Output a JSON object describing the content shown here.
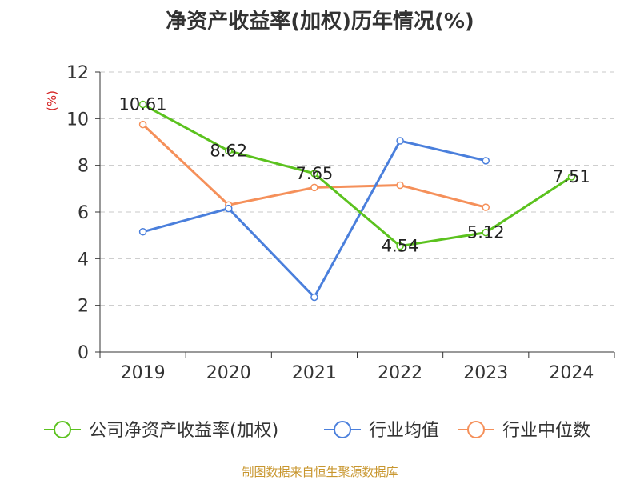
{
  "chart_data": {
    "type": "line",
    "title": "净资产收益率(加权)历年情况(%)",
    "ylabel": "(%)",
    "xlabel": "",
    "categories": [
      "2019",
      "2020",
      "2021",
      "2022",
      "2023",
      "2024"
    ],
    "ylim": [
      0,
      12
    ],
    "yticks": [
      0,
      2,
      4,
      6,
      8,
      10,
      12
    ],
    "grid": true,
    "legend": "bottom",
    "series": [
      {
        "name": "公司净资产收益率(加权)",
        "color": "#5bc21e",
        "labeled": true,
        "values": [
          10.61,
          8.62,
          7.65,
          4.54,
          5.12,
          7.51
        ],
        "labels": [
          "10.61",
          "8.62",
          "7.65",
          "4.54",
          "5.12",
          "7.51"
        ]
      },
      {
        "name": "行业均值",
        "color": "#4a7fdc",
        "labeled": false,
        "values": [
          5.15,
          6.15,
          2.35,
          9.05,
          8.2,
          null
        ]
      },
      {
        "name": "行业中位数",
        "color": "#f5905a",
        "labeled": false,
        "values": [
          9.75,
          6.3,
          7.05,
          7.15,
          6.2,
          null
        ]
      }
    ]
  },
  "footer": {
    "source": "制图数据来自恒生聚源数据库"
  }
}
